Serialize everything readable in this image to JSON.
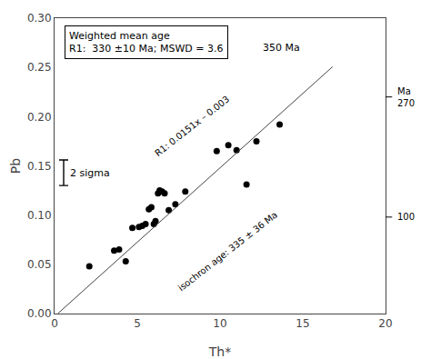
{
  "chart_data": {
    "type": "scatter",
    "series": [
      {
        "type": "scatter",
        "marker": "circle",
        "color": "#000000",
        "x": [
          2.1,
          3.6,
          3.9,
          4.3,
          4.7,
          5.1,
          5.3,
          5.5,
          5.7,
          5.85,
          6.0,
          6.1,
          6.25,
          6.35,
          6.5,
          6.65,
          6.9,
          7.3,
          7.9,
          9.8,
          10.5,
          11.0,
          11.6,
          12.2,
          13.6
        ],
        "values": [
          0.048,
          0.064,
          0.065,
          0.053,
          0.087,
          0.088,
          0.089,
          0.091,
          0.106,
          0.108,
          0.091,
          0.094,
          0.122,
          0.125,
          0.124,
          0.122,
          0.105,
          0.111,
          0.124,
          0.165,
          0.171,
          0.166,
          0.131,
          0.175,
          0.192
        ]
      },
      {
        "type": "line",
        "color": "#444444",
        "x": [
          0.2,
          16.8
        ],
        "values": [
          2e-05,
          0.25068
        ]
      }
    ],
    "xlabel": "Th*",
    "ylabel": "Pb",
    "xlim": [
      0,
      20
    ],
    "xticks": [
      0,
      5,
      10,
      15,
      20
    ],
    "ylim": [
      0,
      0.3
    ],
    "yticks": [
      {
        "value": 0,
        "label": "0.00"
      },
      0.05,
      {
        "value": 0.1,
        "label": "0.10"
      },
      0.15,
      {
        "value": 0.2,
        "label": "0.20"
      },
      0.25,
      {
        "value": 0.3,
        "label": "0.30"
      }
    ],
    "grid": false,
    "error_bar": {
      "x": 0.55,
      "value": 0.143,
      "error": 0.013,
      "label": "2 sigma"
    },
    "annotations": [
      "Weighted mean age\nR1:  330 ±10 Ma; MSWD = 3.6",
      "R1: 0.0151x – 0.003",
      "isochron age: 335 ± 36 Ma",
      "350 Ma"
    ],
    "right_marks": [
      {
        "value": 0.22,
        "label": "Ma\n270"
      },
      {
        "value": 0.098,
        "label": "100"
      }
    ]
  }
}
